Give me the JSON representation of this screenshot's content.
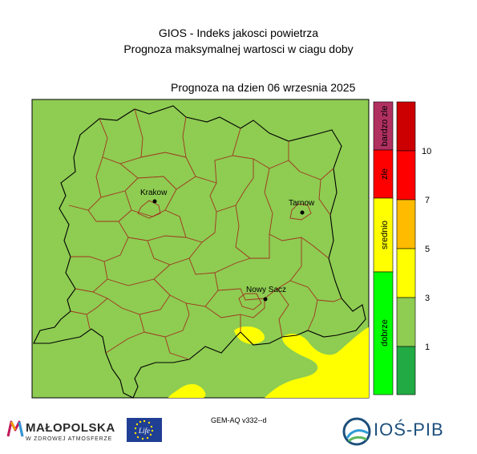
{
  "header": {
    "line1": "GIOS - Indeks jakosci powietrza",
    "line2": "Prognoza maksymalnej wartosci w ciagu doby",
    "date_line": "Prognoza na dzien  06 wrzesnia 2025"
  },
  "cities": [
    {
      "name": "Krakow"
    },
    {
      "name": "Tarnow"
    },
    {
      "name": "Nowy Sacz"
    }
  ],
  "legend": {
    "categories": [
      {
        "label": "bardzo zle",
        "color": "#b03060"
      },
      {
        "label": "zle",
        "color": "#ff0000"
      },
      {
        "label": "srednio",
        "color": "#ffff00"
      },
      {
        "label": "dobrze",
        "color": "#00ff00"
      }
    ],
    "scale_colors": [
      "#cc0000",
      "#ff0000",
      "#ffbb00",
      "#ffff00",
      "#8ecc52",
      "#22aa44"
    ],
    "ticks": [
      "10",
      "7",
      "5",
      "3",
      "1"
    ]
  },
  "map_colors": {
    "background": "#8ecc52",
    "low_band": "#ffff00"
  },
  "footer": {
    "model": "GEM-AQ v332--d",
    "logo_left_name": "MAŁOPOLSKA",
    "logo_left_sub": "W ZDROWEJ ATMOSFERZE",
    "eu_text": "Life",
    "logo_right_name": "IOŚ-PIB"
  }
}
